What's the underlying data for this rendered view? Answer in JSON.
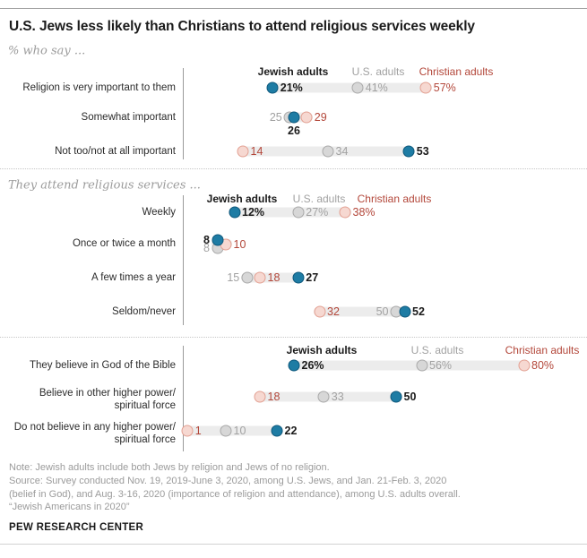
{
  "title": "U.S. Jews less likely than Christians to attend religious services weekly",
  "colors": {
    "jewish_fill": "#1e7ca4",
    "jewish_border": "#0e587c",
    "jewish_text": "#1a1a1a",
    "us_fill": "#d7d7d7",
    "us_border": "#a9a9a9",
    "us_text": "#a1a1a1",
    "christian_fill": "#f6d8d1",
    "christian_border": "#e3a193",
    "christian_text": "#b3473a",
    "track": "#ececec"
  },
  "chart_data": {
    "type": "scatter",
    "value_unit": "%",
    "xlim": [
      0,
      100
    ],
    "groups": [
      {
        "id": "jewish",
        "label": "Jewish adults"
      },
      {
        "id": "us",
        "label": "U.S. adults"
      },
      {
        "id": "christian",
        "label": "Christian adults"
      }
    ],
    "sections": [
      {
        "heading": "% who say ...",
        "rows": [
          {
            "label": "Religion is very important to them",
            "dots": [
              {
                "group": "jewish",
                "value": 21,
                "text": "21%",
                "pos": "right"
              },
              {
                "group": "us",
                "value": 41,
                "text": "41%",
                "pos": "right"
              },
              {
                "group": "christian",
                "value": 57,
                "text": "57%",
                "pos": "right"
              }
            ]
          },
          {
            "label": "Somewhat important",
            "dots": [
              {
                "group": "jewish",
                "value": 26,
                "text": "26",
                "pos": "below"
              },
              {
                "group": "us",
                "value": 25,
                "text": "25",
                "pos": "left"
              },
              {
                "group": "christian",
                "value": 29,
                "text": "29",
                "pos": "right"
              }
            ]
          },
          {
            "label": "Not too/not at all important",
            "dots": [
              {
                "group": "jewish",
                "value": 53,
                "text": "53",
                "pos": "right"
              },
              {
                "group": "us",
                "value": 34,
                "text": "34",
                "pos": "right"
              },
              {
                "group": "christian",
                "value": 14,
                "text": "14",
                "pos": "right"
              }
            ]
          }
        ]
      },
      {
        "heading": "They attend religious services ...",
        "rows": [
          {
            "label": "Weekly",
            "dots": [
              {
                "group": "jewish",
                "value": 12,
                "text": "12%",
                "pos": "right"
              },
              {
                "group": "us",
                "value": 27,
                "text": "27%",
                "pos": "right"
              },
              {
                "group": "christian",
                "value": 38,
                "text": "38%",
                "pos": "right"
              }
            ]
          },
          {
            "label": "Once or twice a month",
            "dots": [
              {
                "group": "jewish",
                "value": 8,
                "text": "8",
                "pos": "left",
                "dy": -4
              },
              {
                "group": "us",
                "value": 8,
                "text": "8",
                "pos": "left",
                "dy": 5
              },
              {
                "group": "christian",
                "value": 10,
                "text": "10",
                "pos": "right",
                "dy": 1
              }
            ]
          },
          {
            "label": "A few times a year",
            "dots": [
              {
                "group": "jewish",
                "value": 27,
                "text": "27",
                "pos": "right"
              },
              {
                "group": "us",
                "value": 15,
                "text": "15",
                "pos": "left"
              },
              {
                "group": "christian",
                "value": 18,
                "text": "18",
                "pos": "right"
              }
            ]
          },
          {
            "label": "Seldom/never",
            "dots": [
              {
                "group": "jewish",
                "value": 52,
                "text": "52",
                "pos": "right"
              },
              {
                "group": "us",
                "value": 50,
                "text": "50",
                "pos": "left"
              },
              {
                "group": "christian",
                "value": 32,
                "text": "32",
                "pos": "right"
              }
            ]
          }
        ]
      },
      {
        "heading": null,
        "rows": [
          {
            "label": "They believe in God of the Bible",
            "dots": [
              {
                "group": "jewish",
                "value": 26,
                "text": "26%",
                "pos": "right"
              },
              {
                "group": "us",
                "value": 56,
                "text": "56%",
                "pos": "right"
              },
              {
                "group": "christian",
                "value": 80,
                "text": "80%",
                "pos": "right"
              }
            ]
          },
          {
            "label": "Believe in other higher power/\nspiritual force",
            "dots": [
              {
                "group": "jewish",
                "value": 50,
                "text": "50",
                "pos": "right"
              },
              {
                "group": "us",
                "value": 33,
                "text": "33",
                "pos": "right"
              },
              {
                "group": "christian",
                "value": 18,
                "text": "18",
                "pos": "right"
              }
            ]
          },
          {
            "label": "Do not believe in any higher power/\nspiritual force",
            "dots": [
              {
                "group": "jewish",
                "value": 22,
                "text": "22",
                "pos": "right"
              },
              {
                "group": "us",
                "value": 10,
                "text": "10",
                "pos": "right"
              },
              {
                "group": "christian",
                "value": 1,
                "text": "1",
                "pos": "right"
              }
            ]
          }
        ]
      }
    ]
  },
  "footer": {
    "note_lines": [
      "Note: Jewish adults include both Jews by religion and Jews of no religion.",
      "Source: Survey conducted Nov. 19, 2019-June 3, 2020, among U.S. Jews, and Jan. 21-Feb. 3, 2020",
      "(belief in God), and Aug. 3-16, 2020 (importance of religion and attendance), among U.S. adults overall.",
      "“Jewish Americans in 2020”"
    ],
    "brand": "PEW RESEARCH CENTER"
  }
}
